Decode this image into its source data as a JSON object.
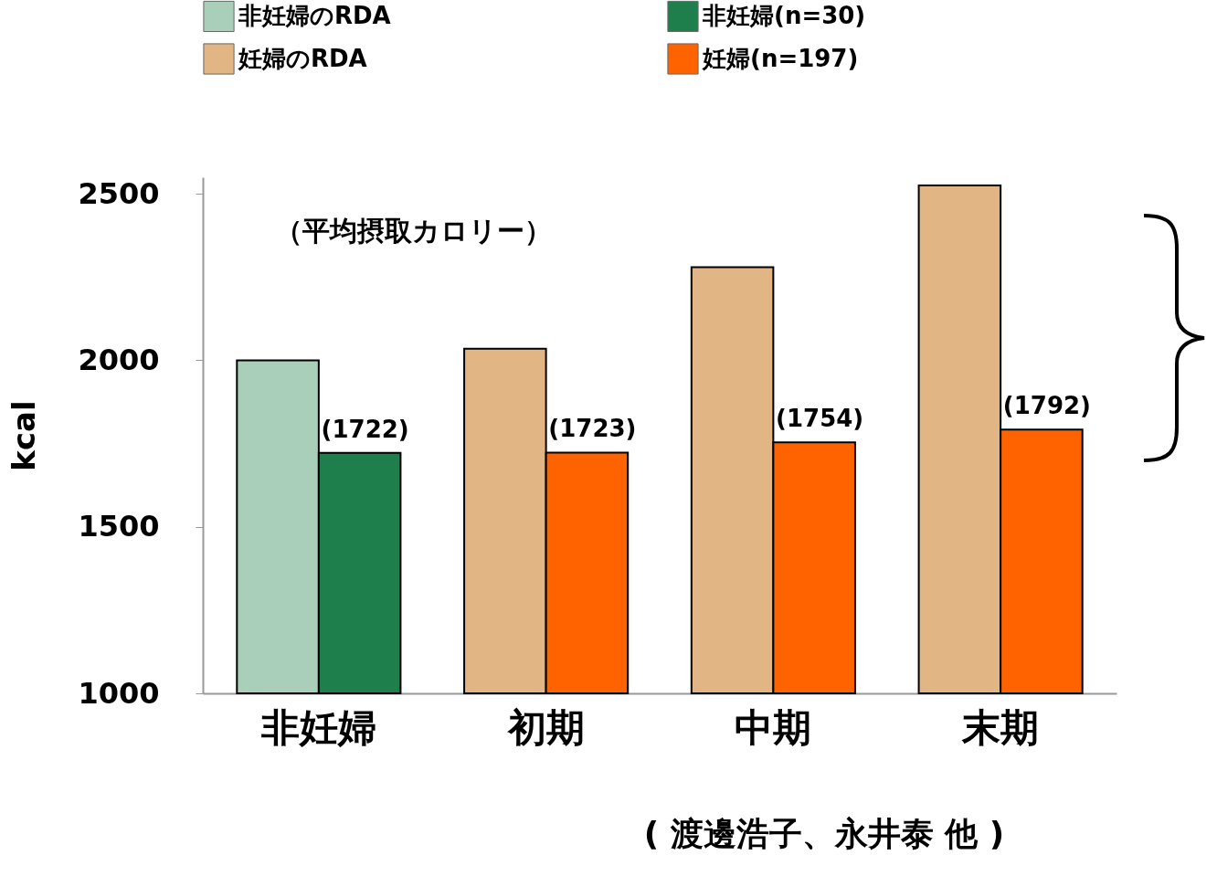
{
  "chart_data": {
    "type": "bar",
    "categories": [
      "非妊婦",
      "初期",
      "中期",
      "末期"
    ],
    "ylabel": "kcal",
    "ylim": [
      1000,
      2550
    ],
    "yticks": [
      1000,
      1500,
      2000,
      2500
    ],
    "legend": "top",
    "series": [
      {
        "name": "非妊婦のRDA",
        "color": "#a9cfba",
        "values": [
          2000,
          null,
          null,
          null
        ]
      },
      {
        "name": "非妊婦(n=30)",
        "color": "#1f7f4c",
        "values": [
          1722,
          null,
          null,
          null
        ],
        "value_labels": [
          "(1722)",
          null,
          null,
          null
        ]
      },
      {
        "name": "妊婦のRDA",
        "color": "#e2b684",
        "values": [
          null,
          2035,
          2280,
          2525
        ]
      },
      {
        "name": "妊婦(n=197)",
        "color": "#ff6300",
        "values": [
          null,
          1723,
          1754,
          1792
        ],
        "value_labels": [
          null,
          "(1723)",
          "(1754)",
          "(1792)"
        ]
      }
    ],
    "annotations": [
      "（平均摂取カロリー）",
      "( 渡邊浩子、永井泰 他 )"
    ]
  }
}
